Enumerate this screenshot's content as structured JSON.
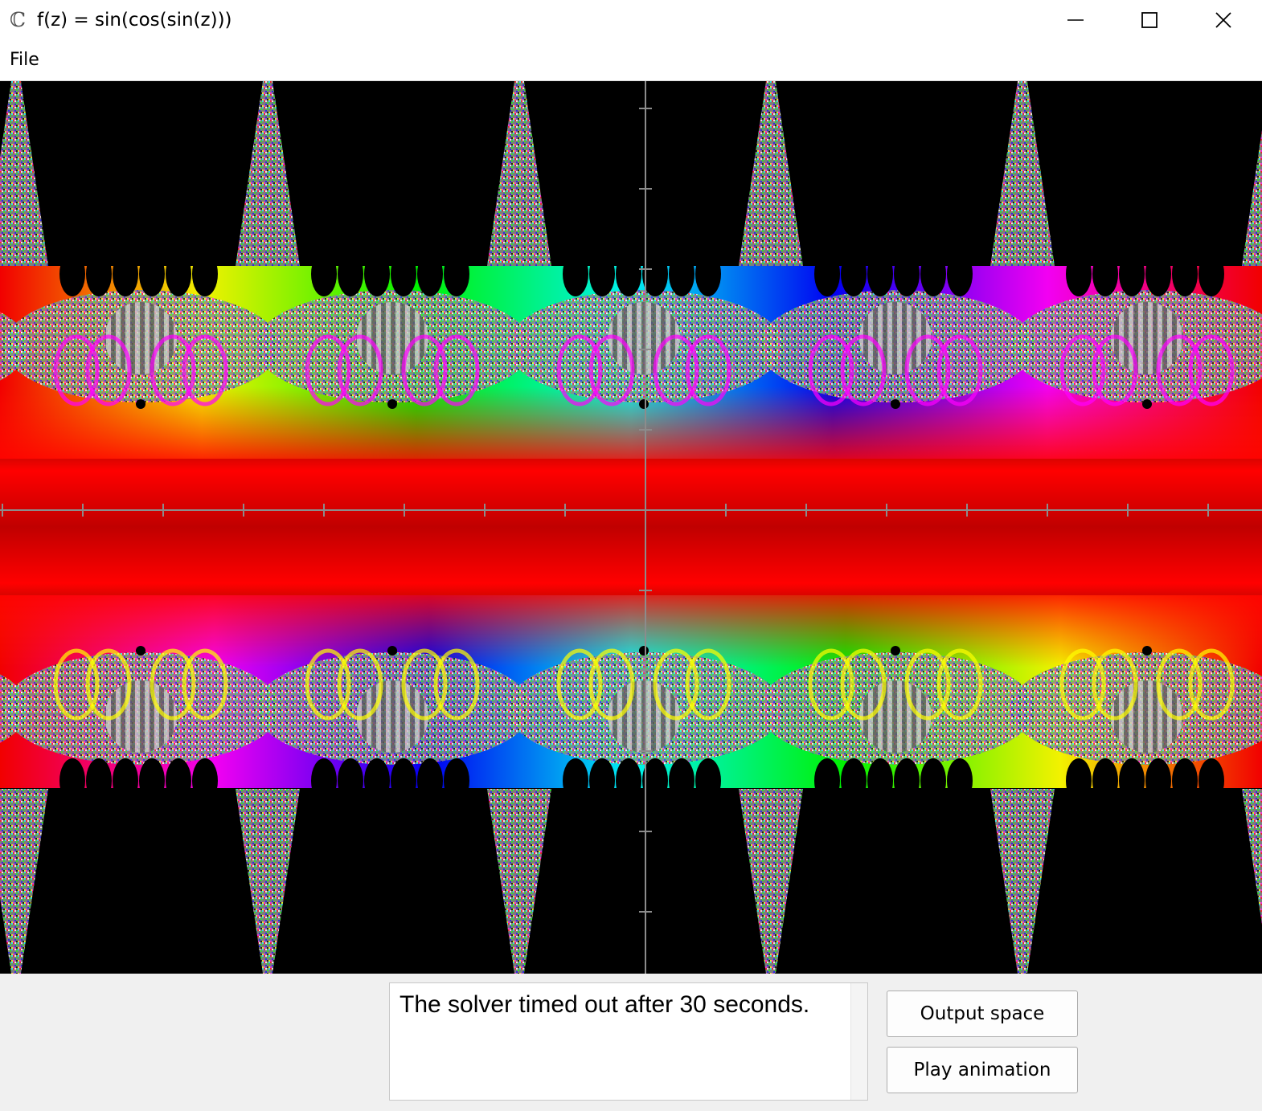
{
  "window": {
    "icon_glyph": "ℂ",
    "title": "f(z) = sin(cos(sin(z)))",
    "controls": [
      "minimize-icon",
      "maximize-icon",
      "close-icon"
    ]
  },
  "menu": {
    "items": [
      {
        "label": "File"
      }
    ]
  },
  "plot": {
    "description_type": "domain-coloring",
    "axes_color": "#808080",
    "background": "#000000"
  },
  "status": {
    "message": "The solver timed out after 30 seconds."
  },
  "buttons": {
    "output_space": "Output space",
    "play_animation": "Play animation"
  }
}
